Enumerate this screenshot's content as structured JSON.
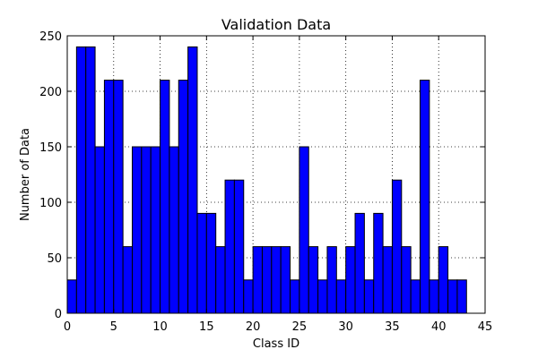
{
  "chart_data": {
    "type": "bar",
    "title": "Validation Data",
    "xlabel": "Class ID",
    "ylabel": "Number of Data",
    "xlim": [
      0,
      45
    ],
    "ylim": [
      0,
      250
    ],
    "grid": true,
    "bar_color": "#0000ff",
    "bar_edge_color": "#000000",
    "x": [
      0,
      1,
      2,
      3,
      4,
      5,
      6,
      7,
      8,
      9,
      10,
      11,
      12,
      13,
      14,
      15,
      16,
      17,
      18,
      19,
      20,
      21,
      22,
      23,
      24,
      25,
      26,
      27,
      28,
      29,
      30,
      31,
      32,
      33,
      34,
      35,
      36,
      37,
      38,
      39,
      40,
      41,
      42
    ],
    "values": [
      30,
      240,
      240,
      150,
      210,
      210,
      60,
      150,
      150,
      150,
      210,
      150,
      210,
      240,
      90,
      90,
      60,
      120,
      120,
      30,
      60,
      60,
      60,
      60,
      30,
      150,
      60,
      30,
      60,
      30,
      60,
      90,
      30,
      90,
      60,
      120,
      60,
      30,
      210,
      30,
      60,
      30,
      30
    ],
    "xticks": [
      "0",
      "5",
      "10",
      "15",
      "20",
      "25",
      "30",
      "35",
      "40",
      "45"
    ],
    "yticks": [
      "0",
      "50",
      "100",
      "150",
      "200",
      "250"
    ]
  }
}
